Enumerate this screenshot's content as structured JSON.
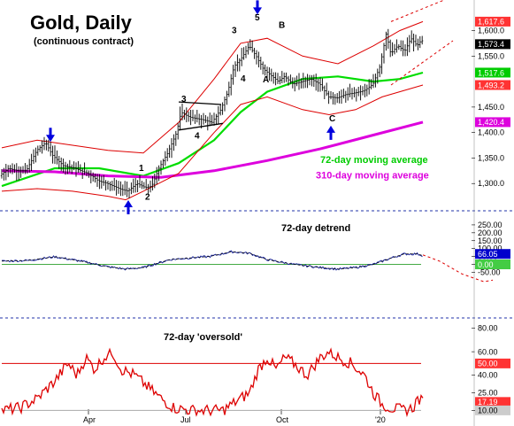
{
  "chart_data": [
    {
      "type": "candlestick",
      "title": "Gold, Daily",
      "subtitle": "(continuous contract)",
      "ylim": [
        1250,
        1660
      ],
      "yticks": [
        "1,300.0",
        "1,350.0",
        "1,400.0",
        "1,450.0",
        "1,550.0",
        "1,600.0"
      ],
      "xticks": [
        "Apr",
        "Jul",
        "Oct",
        "'20"
      ],
      "price_path": [
        [
          0,
          1315
        ],
        [
          10,
          1330
        ],
        [
          20,
          1325
        ],
        [
          30,
          1325
        ],
        [
          42,
          1365
        ],
        [
          52,
          1380
        ],
        [
          60,
          1355
        ],
        [
          72,
          1335
        ],
        [
          85,
          1330
        ],
        [
          100,
          1320
        ],
        [
          112,
          1305
        ],
        [
          122,
          1300
        ],
        [
          135,
          1290
        ],
        [
          145,
          1285
        ],
        [
          155,
          1300
        ],
        [
          165,
          1292
        ],
        [
          172,
          1295
        ],
        [
          180,
          1330
        ],
        [
          190,
          1360
        ],
        [
          200,
          1400
        ],
        [
          205,
          1440
        ],
        [
          215,
          1430
        ],
        [
          230,
          1425
        ],
        [
          240,
          1420
        ],
        [
          250,
          1445
        ],
        [
          258,
          1480
        ],
        [
          265,
          1530
        ],
        [
          273,
          1545
        ],
        [
          282,
          1570
        ],
        [
          290,
          1550
        ],
        [
          298,
          1525
        ],
        [
          305,
          1515
        ],
        [
          315,
          1500
        ],
        [
          322,
          1510
        ],
        [
          332,
          1495
        ],
        [
          342,
          1500
        ],
        [
          352,
          1505
        ],
        [
          362,
          1495
        ],
        [
          372,
          1470
        ],
        [
          382,
          1468
        ],
        [
          392,
          1475
        ],
        [
          402,
          1478
        ],
        [
          412,
          1482
        ],
        [
          422,
          1495
        ],
        [
          430,
          1530
        ],
        [
          437,
          1595
        ],
        [
          442,
          1555
        ],
        [
          450,
          1570
        ],
        [
          458,
          1560
        ],
        [
          465,
          1585
        ],
        [
          472,
          1570
        ],
        [
          476,
          1580
        ]
      ],
      "series": [
        {
          "name": "72-day moving average",
          "color": "#00dd00",
          "values": [
            [
              0,
              1295
            ],
            [
              60,
              1330
            ],
            [
              110,
              1330
            ],
            [
              160,
              1315
            ],
            [
              200,
              1340
            ],
            [
              240,
              1385
            ],
            [
              270,
              1440
            ],
            [
              300,
              1480
            ],
            [
              340,
              1505
            ],
            [
              380,
              1510
            ],
            [
              420,
              1500
            ],
            [
              450,
              1505
            ],
            [
              476,
              1517.6
            ]
          ]
        },
        {
          "name": "310-day moving average",
          "color": "#dd00dd",
          "values": [
            [
              0,
              1325
            ],
            [
              60,
              1323
            ],
            [
              120,
              1315
            ],
            [
              180,
              1312
            ],
            [
              240,
              1325
            ],
            [
              300,
              1345
            ],
            [
              360,
              1368
            ],
            [
              420,
              1395
            ],
            [
              476,
              1420.4
            ]
          ]
        },
        {
          "name": "upper band",
          "color": "#dd0000",
          "values": [
            [
              0,
              1370
            ],
            [
              40,
              1385
            ],
            [
              80,
              1375
            ],
            [
              120,
              1365
            ],
            [
              160,
              1360
            ],
            [
              200,
              1420
            ],
            [
              240,
              1505
            ],
            [
              270,
              1575
            ],
            [
              300,
              1585
            ],
            [
              340,
              1550
            ],
            [
              380,
              1535
            ],
            [
              420,
              1570
            ],
            [
              450,
              1600
            ],
            [
              476,
              1617.6
            ]
          ]
        },
        {
          "name": "lower band",
          "color": "#dd0000",
          "values": [
            [
              0,
              1285
            ],
            [
              40,
              1290
            ],
            [
              80,
              1285
            ],
            [
              120,
              1275
            ],
            [
              140,
              1268
            ],
            [
              160,
              1285
            ],
            [
              200,
              1320
            ],
            [
              240,
              1400
            ],
            [
              270,
              1455
            ],
            [
              300,
              1470
            ],
            [
              340,
              1445
            ],
            [
              370,
              1435
            ],
            [
              400,
              1445
            ],
            [
              430,
              1470
            ],
            [
              476,
              1493.2
            ]
          ]
        }
      ],
      "projections": [
        [
          [
            440,
            1617.6
          ],
          [
            500,
            1660
          ]
        ],
        [
          [
            440,
            1493.2
          ],
          [
            510,
            1580
          ]
        ]
      ],
      "annotations": [
        {
          "text": "72-day moving average",
          "color": "#00cc00",
          "at": [
            360,
            1340
          ]
        },
        {
          "text": "310-day moving average",
          "color": "#dd00dd",
          "at": [
            355,
            1310
          ]
        }
      ],
      "wave_labels": [
        {
          "text": "1",
          "at": [
            155,
            1325
          ]
        },
        {
          "text": "2",
          "at": [
            162,
            1268
          ]
        },
        {
          "text": "3",
          "at": [
            203,
            1460
          ]
        },
        {
          "text": "4",
          "at": [
            218,
            1388
          ]
        },
        {
          "text": "3",
          "at": [
            260,
            1595
          ]
        },
        {
          "text": "4",
          "at": [
            270,
            1500
          ]
        },
        {
          "text": "5",
          "at": [
            286,
            1620
          ]
        },
        {
          "text": "A",
          "at": [
            295,
            1498
          ]
        },
        {
          "text": "B",
          "at": [
            313,
            1605
          ]
        },
        {
          "text": "C",
          "at": [
            370,
            1422
          ]
        }
      ],
      "arrows": [
        {
          "at": [
            55,
            1385
          ],
          "direction": "down",
          "color": "#0000dd"
        },
        {
          "at": [
            143,
            1264
          ],
          "direction": "up",
          "color": "#0000dd"
        },
        {
          "at": [
            289,
            1635
          ],
          "direction": "down",
          "color": "#0000dd"
        },
        {
          "at": [
            372,
            1410
          ],
          "direction": "up",
          "color": "#0000dd"
        }
      ],
      "trendlines": [
        [
          [
            200,
            1460
          ],
          [
            248,
            1455
          ]
        ],
        [
          [
            200,
            1405
          ],
          [
            250,
            1418
          ]
        ]
      ],
      "value_badges": [
        {
          "text": "1,617.6",
          "value": 1617.6,
          "bg": "#ff3333",
          "fg": "#ffffff"
        },
        {
          "text": "1,573.4",
          "value": 1573.4,
          "bg": "#000000",
          "fg": "#ffffff"
        },
        {
          "text": "1,517.6",
          "value": 1517.6,
          "bg": "#00cc00",
          "fg": "#ffffff"
        },
        {
          "text": "1,493.2",
          "value": 1493.2,
          "bg": "#ff3333",
          "fg": "#ffffff"
        },
        {
          "text": "1,420.4",
          "value": 1420.4,
          "bg": "#dd00dd",
          "fg": "#ffffff"
        }
      ]
    },
    {
      "type": "line",
      "title": "72-day detrend",
      "ylim": [
        -300,
        300
      ],
      "yticks": [
        "250.00",
        "200.00",
        "150.00",
        "100.00",
        "50.00",
        "0.00",
        "-50.00"
      ],
      "series": [
        {
          "name": "detrend",
          "color": "#1f2aa0",
          "values": [
            [
              0,
              20
            ],
            [
              30,
              25
            ],
            [
              60,
              48
            ],
            [
              90,
              20
            ],
            [
              120,
              -15
            ],
            [
              140,
              -30
            ],
            [
              160,
              -20
            ],
            [
              190,
              30
            ],
            [
              210,
              40
            ],
            [
              235,
              50
            ],
            [
              260,
              80
            ],
            [
              280,
              70
            ],
            [
              300,
              30
            ],
            [
              330,
              0
            ],
            [
              360,
              -20
            ],
            [
              380,
              -30
            ],
            [
              400,
              -20
            ],
            [
              420,
              0
            ],
            [
              440,
              40
            ],
            [
              455,
              66
            ],
            [
              470,
              66
            ],
            [
              476,
              55
            ]
          ]
        }
      ],
      "projection": [
        [
          476,
          60
        ],
        [
          495,
          20
        ],
        [
          520,
          -60
        ],
        [
          545,
          -110
        ],
        [
          555,
          -100
        ]
      ],
      "zero_line_color": "#44aa44",
      "value_badges": [
        {
          "text": "66.05",
          "value": 66.05,
          "bg": "#0000cc",
          "fg": "#ffffff"
        },
        {
          "text": "0.00",
          "value": 0,
          "bg": "#44cc44",
          "fg": "#ffffff"
        }
      ]
    },
    {
      "type": "line",
      "title": "72-day 'oversold'",
      "ylim": [
        5,
        85
      ],
      "yticks": [
        "80.00",
        "60.00",
        "40.00",
        "25.00",
        "10.00"
      ],
      "series": [
        {
          "name": "oversold",
          "color": "#dd0000",
          "values": [
            [
              0,
              10
            ],
            [
              20,
              12
            ],
            [
              40,
              20
            ],
            [
              60,
              35
            ],
            [
              75,
              50
            ],
            [
              85,
              40
            ],
            [
              95,
              55
            ],
            [
              105,
              45
            ],
            [
              115,
              55
            ],
            [
              125,
              60
            ],
            [
              135,
              45
            ],
            [
              150,
              40
            ],
            [
              165,
              30
            ],
            [
              180,
              20
            ],
            [
              195,
              12
            ],
            [
              215,
              10
            ],
            [
              250,
              10
            ],
            [
              280,
              25
            ],
            [
              290,
              45
            ],
            [
              300,
              55
            ],
            [
              310,
              45
            ],
            [
              320,
              55
            ],
            [
              330,
              50
            ],
            [
              345,
              40
            ],
            [
              360,
              55
            ],
            [
              370,
              60
            ],
            [
              380,
              55
            ],
            [
              395,
              50
            ],
            [
              410,
              40
            ],
            [
              420,
              25
            ],
            [
              430,
              15
            ],
            [
              440,
              12
            ],
            [
              455,
              10
            ],
            [
              465,
              12
            ],
            [
              470,
              20
            ],
            [
              476,
              17
            ]
          ]
        }
      ],
      "upper_line_value": 50,
      "lower_line_value": 10,
      "value_badges": [
        {
          "text": "60.00",
          "value": 60,
          "bg": "#ffffff",
          "fg": "#000000"
        },
        {
          "text": "50.00",
          "value": 50,
          "bg": "#ff3333",
          "fg": "#ffffff"
        },
        {
          "text": "17.19",
          "value": 17.19,
          "bg": "#ff3333",
          "fg": "#ffffff"
        },
        {
          "text": "10.00",
          "value": 10,
          "bg": "#cccccc",
          "fg": "#000000"
        }
      ]
    }
  ]
}
